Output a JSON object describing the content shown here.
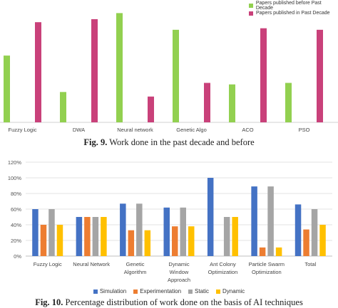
{
  "chart_data": [
    {
      "type": "bar",
      "categories": [
        "Fuzzy Logic",
        "DWA",
        "Neural network",
        "Genetic Algo",
        "ACO",
        "PSO"
      ],
      "series": [
        {
          "name": "Papers published before Past Decade",
          "values": [
            44,
            20,
            72,
            61,
            25,
            26
          ]
        },
        {
          "name": "Papers published in Past Decade",
          "values": [
            66,
            68,
            17,
            26,
            62,
            61
          ]
        }
      ],
      "colors": [
        "#92d050",
        "#c9417a"
      ],
      "ylim": [
        0,
        75
      ],
      "legend": "top-right",
      "grid": false,
      "caption_label": "Fig. 9.",
      "caption_text": " Work done in the past decade and before"
    },
    {
      "type": "bar",
      "categories": [
        [
          "Fuzzy Logic"
        ],
        [
          "Neural Network"
        ],
        [
          "Genetic",
          "Algorithm"
        ],
        [
          "Dynamic",
          "Window",
          "Approach"
        ],
        [
          "Ant Colony",
          "Optimization"
        ],
        [
          "Particle Swarm",
          "Optimization"
        ],
        [
          "Total"
        ]
      ],
      "series": [
        {
          "name": "Simulation",
          "values": [
            60,
            50,
            67,
            62,
            100,
            89,
            66
          ]
        },
        {
          "name": "Experimentation",
          "values": [
            40,
            50,
            33,
            38,
            0,
            11,
            34
          ]
        },
        {
          "name": "Static",
          "values": [
            60,
            50,
            67,
            62,
            50,
            89,
            60
          ]
        },
        {
          "name": "Dynamic",
          "values": [
            40,
            50,
            33,
            38,
            50,
            11,
            40
          ]
        }
      ],
      "colors": [
        "#4472c4",
        "#ed7d31",
        "#a5a5a5",
        "#ffc000"
      ],
      "yticks": [
        "0%",
        "20%",
        "40%",
        "60%",
        "80%",
        "100%",
        "120%"
      ],
      "ylim": [
        0,
        120
      ],
      "legend": "bottom",
      "grid": true,
      "caption_label": "Fig. 10.",
      "caption_text": " Percentage distribution of work done on the basis of AI techniques"
    }
  ]
}
